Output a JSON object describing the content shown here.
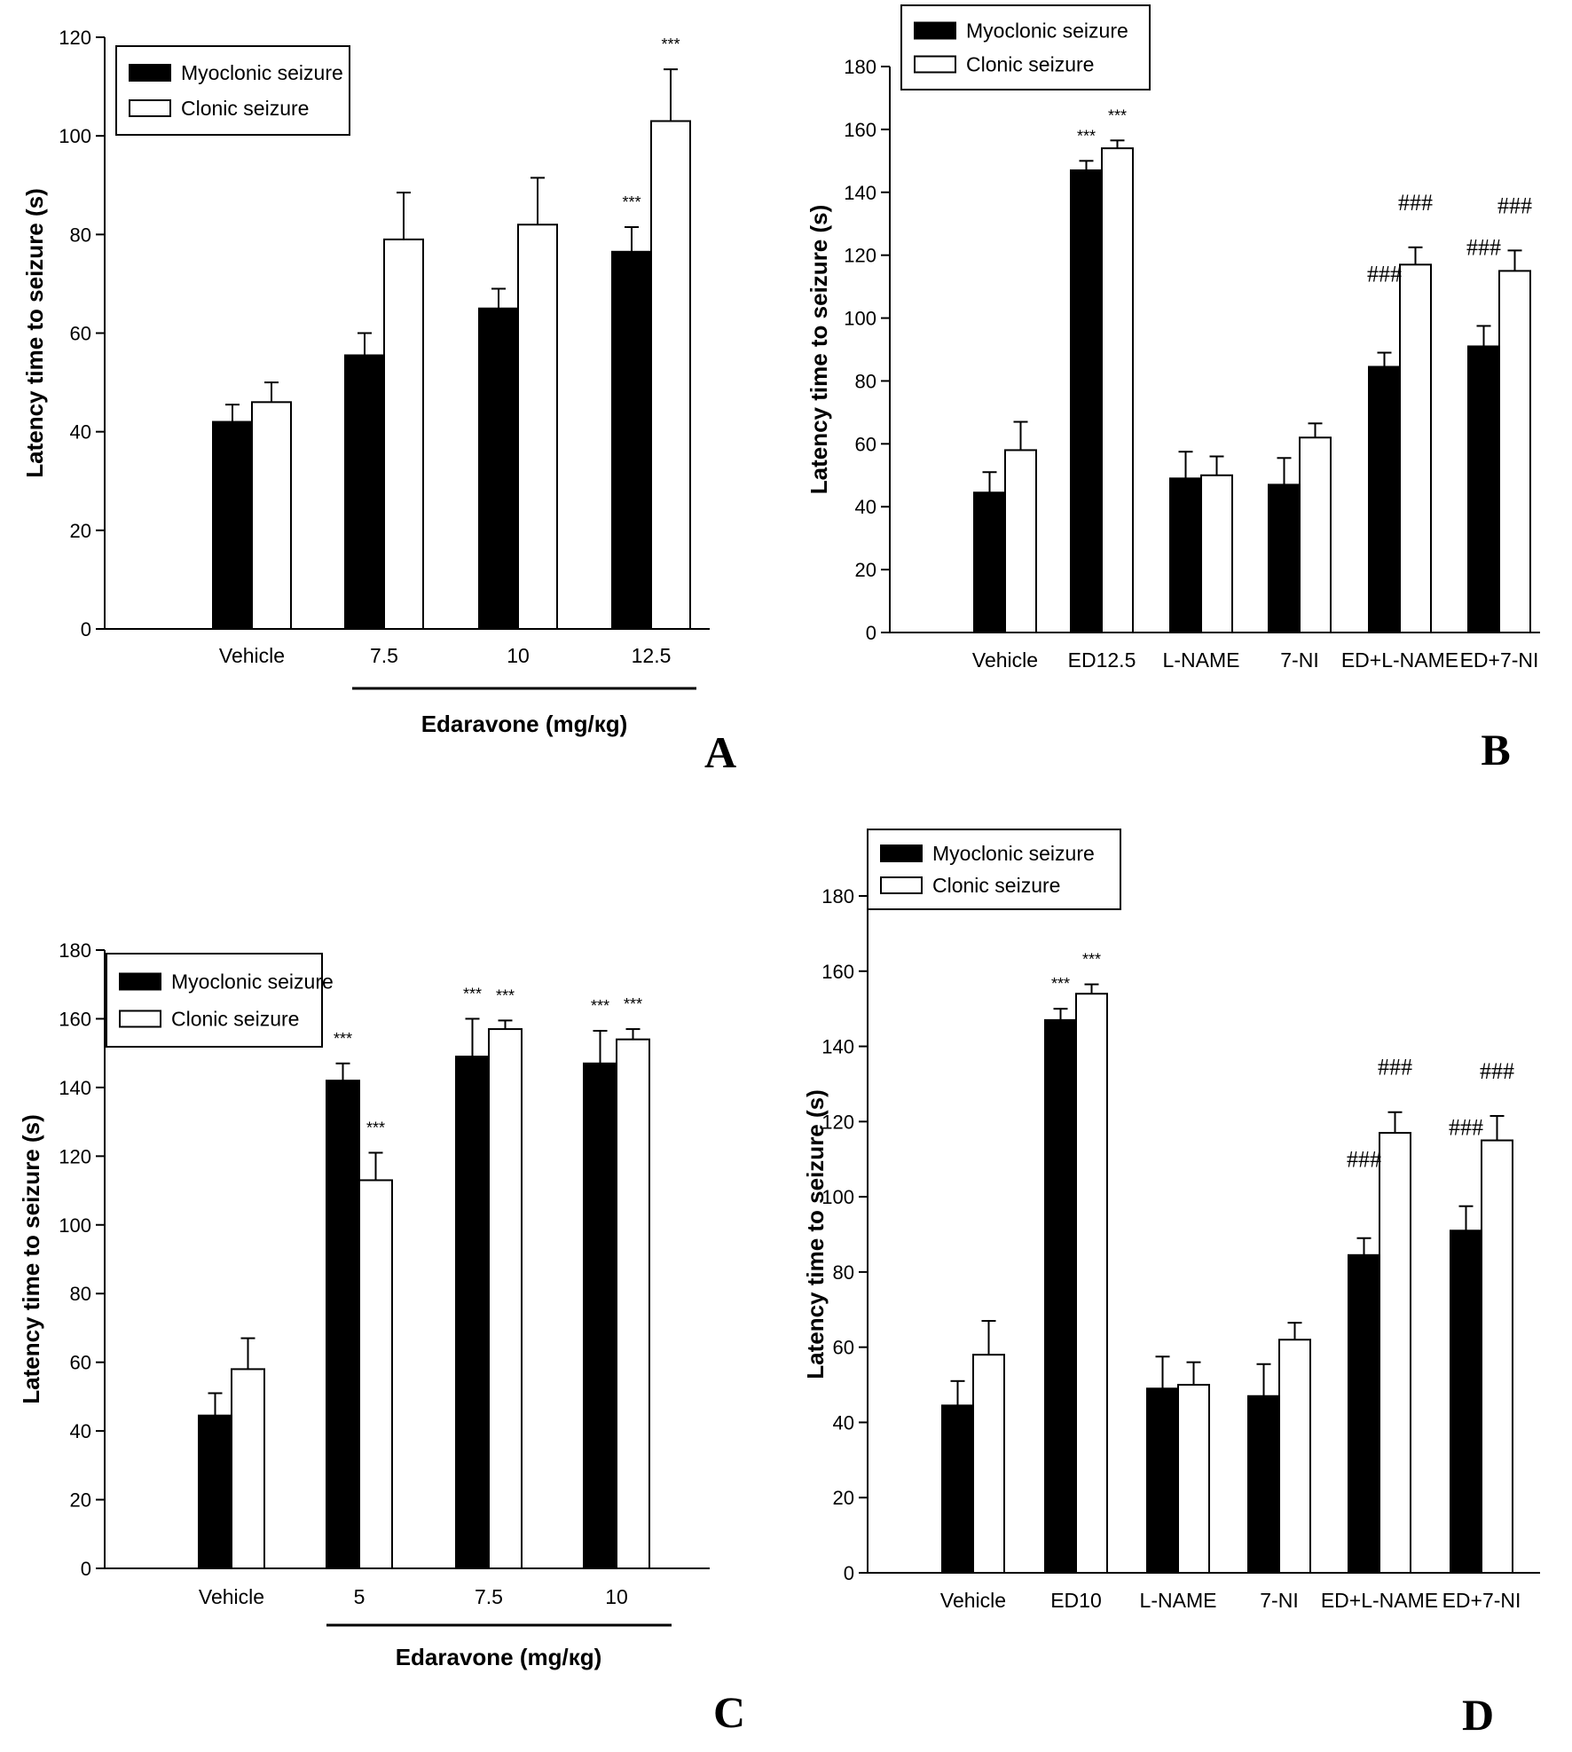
{
  "legend": {
    "myoclonic": "Myoclonic seizure",
    "clonic": "Clonic seizure"
  },
  "colors": {
    "myoclonic": "#000000",
    "clonic": "#ffffff",
    "stroke": "#000000"
  },
  "chart_data": [
    {
      "panel": "A",
      "type": "bar",
      "xlabel": "Edaravone (mg/кg)",
      "ylabel": "Latency time to seizure (s)",
      "ylim": [
        0,
        120
      ],
      "yticks": [
        0,
        20,
        40,
        60,
        80,
        100,
        120
      ],
      "categories": [
        "Vehicle",
        "7.5",
        "10",
        "12.5"
      ],
      "series": [
        {
          "name": "Myoclonic seizure",
          "values": [
            42,
            55.5,
            65,
            76.5
          ],
          "errors": [
            3.5,
            4.5,
            4,
            5
          ]
        },
        {
          "name": "Clonic seizure",
          "values": [
            46,
            79,
            82,
            103
          ],
          "errors": [
            4,
            9.5,
            9.5,
            10.5
          ]
        }
      ],
      "annotations": [
        {
          "category": 3,
          "series": 0,
          "text": "***"
        },
        {
          "category": 3,
          "series": 1,
          "text": "***"
        }
      ],
      "legend_position": "top-left"
    },
    {
      "panel": "B",
      "type": "bar",
      "xlabel": "",
      "ylabel": "Latency time to seizure (s)",
      "ylim": [
        0,
        180
      ],
      "yticks": [
        0,
        20,
        40,
        60,
        80,
        100,
        120,
        140,
        160,
        180
      ],
      "categories": [
        "Vehicle",
        "ED12.5",
        "L-NAME",
        "7-NI",
        "ED+L-NAME",
        "ED+7-NI"
      ],
      "series": [
        {
          "name": "Myoclonic seizure",
          "values": [
            44.5,
            147,
            49,
            47,
            84.5,
            91
          ],
          "errors": [
            6.5,
            3,
            8.5,
            8.5,
            4.5,
            6.5
          ]
        },
        {
          "name": "Clonic seizure",
          "values": [
            58,
            154,
            50,
            62,
            117,
            115
          ],
          "errors": [
            9,
            2.5,
            6,
            4.5,
            5.5,
            6.5
          ]
        }
      ],
      "annotations": [
        {
          "category": 1,
          "series": 0,
          "text": "***"
        },
        {
          "category": 1,
          "series": 1,
          "text": "***"
        },
        {
          "category": 4,
          "series": 0,
          "text": "###"
        },
        {
          "category": 4,
          "series": 1,
          "text": "###"
        },
        {
          "category": 5,
          "series": 0,
          "text": "###"
        },
        {
          "category": 5,
          "series": 1,
          "text": "###"
        }
      ],
      "legend_position": "top-left"
    },
    {
      "panel": "C",
      "type": "bar",
      "xlabel": "Edaravone (mg/кg)",
      "ylabel": "Latency time to seizure (s)",
      "ylim": [
        0,
        180
      ],
      "yticks": [
        0,
        20,
        40,
        60,
        80,
        100,
        120,
        140,
        160,
        180
      ],
      "categories": [
        "Vehicle",
        "5",
        "7.5",
        "10"
      ],
      "series": [
        {
          "name": "Myoclonic seizure",
          "values": [
            44.5,
            142,
            149,
            147
          ],
          "errors": [
            6.5,
            5,
            11,
            9.5
          ]
        },
        {
          "name": "Clonic seizure",
          "values": [
            58,
            113,
            157,
            154
          ],
          "errors": [
            9,
            8,
            2.5,
            3
          ]
        }
      ],
      "annotations": [
        {
          "category": 1,
          "series": 0,
          "text": "***"
        },
        {
          "category": 1,
          "series": 1,
          "text": "***"
        },
        {
          "category": 2,
          "series": 0,
          "text": "***"
        },
        {
          "category": 2,
          "series": 1,
          "text": "***"
        },
        {
          "category": 3,
          "series": 0,
          "text": "***"
        },
        {
          "category": 3,
          "series": 1,
          "text": "***"
        }
      ],
      "legend_position": "top-left"
    },
    {
      "panel": "D",
      "type": "bar",
      "xlabel": "",
      "ylabel": "Latency time to seizure (s)",
      "ylim": [
        0,
        180
      ],
      "yticks": [
        0,
        20,
        40,
        60,
        80,
        100,
        120,
        140,
        160,
        180
      ],
      "categories": [
        "Vehicle",
        "ED10",
        "L-NAME",
        "7-NI",
        "ED+L-NAME",
        "ED+7-NI"
      ],
      "series": [
        {
          "name": "Myoclonic seizure",
          "values": [
            44.5,
            147,
            49,
            47,
            84.5,
            91
          ],
          "errors": [
            6.5,
            3,
            8.5,
            8.5,
            4.5,
            6.5
          ]
        },
        {
          "name": "Clonic seizure",
          "values": [
            58,
            154,
            50,
            62,
            117,
            115
          ],
          "errors": [
            9,
            2.5,
            6,
            4.5,
            5.5,
            6.5
          ]
        }
      ],
      "annotations": [
        {
          "category": 1,
          "series": 0,
          "text": "***"
        },
        {
          "category": 1,
          "series": 1,
          "text": "***"
        },
        {
          "category": 4,
          "series": 0,
          "text": "###"
        },
        {
          "category": 4,
          "series": 1,
          "text": "###"
        },
        {
          "category": 5,
          "series": 0,
          "text": "###"
        },
        {
          "category": 5,
          "series": 1,
          "text": "###"
        }
      ],
      "legend_position": "top-left"
    }
  ]
}
